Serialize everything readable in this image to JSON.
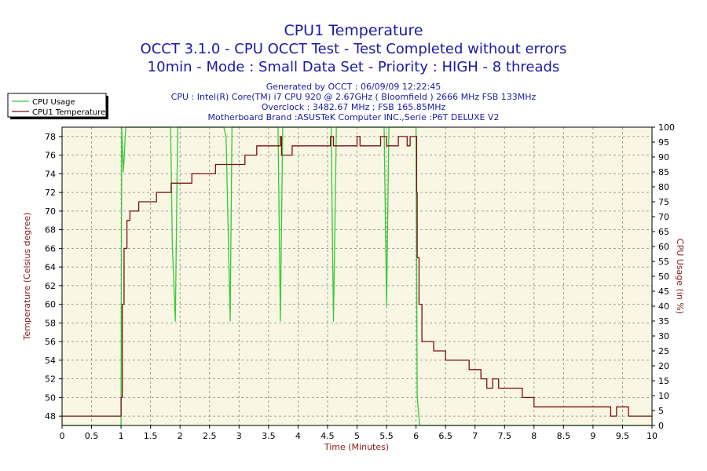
{
  "chart_data": {
    "type": "line",
    "title": "CPU1 Temperature",
    "subtitle_lines": [
      "OCCT 3.1.0 - CPU OCCT Test - Test Completed without errors",
      "10min - Mode : Small Data Set - Priority : HIGH - 8 threads"
    ],
    "info_lines": [
      "Generated by OCCT : 06/09/09 12:22:45",
      "CPU : Intel(R) Core(TM) i7 CPU 920 @ 2.67GHz ( Bloomfield ) 2666 MHz FSB 133MHz",
      "Overclock : 3482.67 MHz ; FSB 165.85MHz",
      "Motherboard Brand :ASUSTeK Computer INC.,Serie :P6T DELUXE V2"
    ],
    "xlabel": "Time (Minutes)",
    "ylabel_left": "Temperature (Celsius degree)",
    "ylabel_right": "CPU Usage (in %)",
    "xlim": [
      0,
      10
    ],
    "ylim_left": [
      47,
      79
    ],
    "ylim_right": [
      0,
      100
    ],
    "x_ticks": [
      "0",
      "0.5",
      "1",
      "1.5",
      "2",
      "2.5",
      "3",
      "3.5",
      "4",
      "4.5",
      "5",
      "5.5",
      "6",
      "6.5",
      "7",
      "7.5",
      "8",
      "8.5",
      "9",
      "9.5",
      "10"
    ],
    "y_left_ticks": [
      "48",
      "50",
      "52",
      "54",
      "56",
      "58",
      "60",
      "62",
      "64",
      "66",
      "68",
      "70",
      "72",
      "74",
      "76",
      "78"
    ],
    "y_right_ticks": [
      "0",
      "5",
      "10",
      "15",
      "20",
      "25",
      "30",
      "35",
      "40",
      "45",
      "50",
      "55",
      "60",
      "65",
      "70",
      "75",
      "80",
      "85",
      "90",
      "95",
      "100"
    ],
    "grid": true,
    "legend_position": "top-left",
    "colors": {
      "background": "#f9f6e4",
      "grid": "#8a8a8a",
      "cpu_usage": "#33cc33",
      "cpu_temperature": "#7a1010"
    },
    "series": [
      {
        "name": "CPU Usage",
        "axis": "right",
        "x": [
          0,
          1.0,
          1.01,
          1.04,
          1.08,
          1.84,
          1.87,
          1.92,
          1.96,
          2.0,
          2.74,
          2.78,
          2.85,
          2.88,
          3.66,
          3.7,
          3.74,
          4.56,
          4.6,
          4.65,
          5.46,
          5.5,
          5.54,
          5.98,
          6.0,
          6.02,
          6.06,
          10
        ],
        "values": [
          0,
          0,
          100,
          85,
          100,
          100,
          60,
          35,
          100,
          100,
          100,
          97,
          35,
          100,
          100,
          35,
          100,
          100,
          35,
          100,
          100,
          40,
          100,
          100,
          100,
          10,
          0,
          0
        ]
      },
      {
        "name": "CPU1 Temperature",
        "axis": "left",
        "x": [
          0,
          0.99,
          1.0,
          1.02,
          1.05,
          1.1,
          1.15,
          1.3,
          1.5,
          1.6,
          1.8,
          1.85,
          1.95,
          2.05,
          2.2,
          2.4,
          2.6,
          2.7,
          2.9,
          3.1,
          3.2,
          3.3,
          3.6,
          3.7,
          3.72,
          3.9,
          4.5,
          4.55,
          4.6,
          4.65,
          4.7,
          4.95,
          5.0,
          5.05,
          5.4,
          5.5,
          5.6,
          5.7,
          5.85,
          5.9,
          6.0,
          6.01,
          6.02,
          6.05,
          6.1,
          6.2,
          6.3,
          6.4,
          6.5,
          6.6,
          6.7,
          6.9,
          7.1,
          7.2,
          7.3,
          7.4,
          7.5,
          7.8,
          8.0,
          8.2,
          8.4,
          8.9,
          9.3,
          9.4,
          9.6,
          10
        ],
        "values": [
          48,
          48,
          50,
          60,
          66,
          69,
          70,
          71,
          71,
          72,
          72,
          73,
          73,
          73,
          74,
          74,
          75,
          75,
          75,
          76,
          76,
          77,
          77,
          78,
          76,
          77,
          77,
          78,
          77,
          77,
          77,
          77,
          78,
          77,
          78,
          77,
          77,
          78,
          77,
          78,
          78,
          72,
          65,
          60,
          56,
          56,
          55,
          55,
          54,
          54,
          54,
          53,
          52,
          51,
          52,
          51,
          51,
          50,
          49,
          49,
          49,
          49,
          48,
          49,
          48,
          48
        ]
      }
    ]
  }
}
